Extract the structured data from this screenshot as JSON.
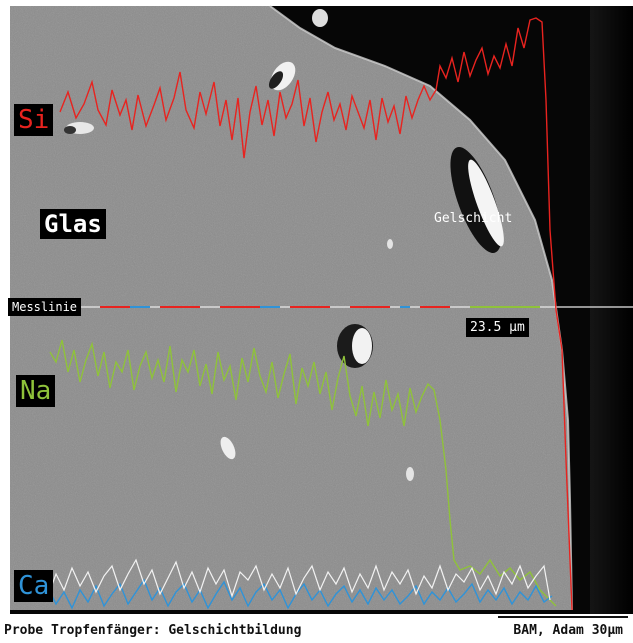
{
  "image": {
    "description_labels": {
      "si": "Si",
      "glas": "Glas",
      "gelschicht": "Gelschicht",
      "messlinie": "Messlinie",
      "distance": "23.5 µm",
      "na": "Na",
      "ca": "Ca"
    },
    "caption": {
      "left": "Probe Tropfenfänger: Gelschichtbildung",
      "right": "BAM, Adam   30µm"
    },
    "colors": {
      "si": "#e8231f",
      "na": "#8fc23a",
      "ca": "#2f93d8",
      "white_trace": "#f2f2f2",
      "glass": "#8b8b8b",
      "background_dark": "#050505"
    }
  }
}
